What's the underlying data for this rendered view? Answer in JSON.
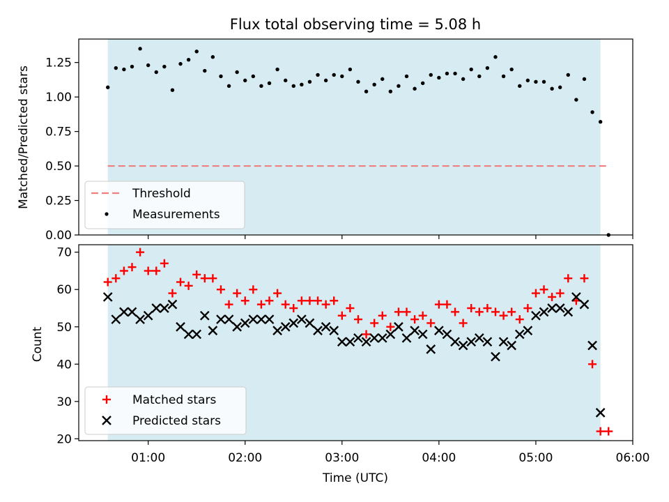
{
  "title": "Flux total observing time = 5.08 h",
  "chart_data": [
    {
      "type": "scatter",
      "panel": "top",
      "ylabel": "Matched/Predicted stars",
      "ylim": [
        0,
        1.42
      ],
      "yticks": [
        0.0,
        0.25,
        0.5,
        0.75,
        1.0,
        1.25
      ],
      "ytick_labels": [
        "0.00",
        "0.25",
        "0.50",
        "0.75",
        "1.00",
        "1.25"
      ],
      "xlim": [
        "00:17",
        "06:00"
      ],
      "shaded_span": [
        "00:35",
        "05:40"
      ],
      "shade_color": "#add8e6",
      "legend_position": "lower-left",
      "threshold": {
        "name": "Threshold",
        "value": 0.5,
        "x_range": [
          "00:35",
          "05:45"
        ],
        "color": "#f08080",
        "style": "dashed"
      },
      "series": [
        {
          "name": "Measurements",
          "color": "#000000",
          "marker": "dot",
          "x": [
            "00:35",
            "00:40",
            "00:45",
            "00:50",
            "00:55",
            "01:00",
            "01:05",
            "01:10",
            "01:15",
            "01:20",
            "01:25",
            "01:30",
            "01:35",
            "01:40",
            "01:45",
            "01:50",
            "01:55",
            "02:00",
            "02:05",
            "02:10",
            "02:15",
            "02:20",
            "02:25",
            "02:30",
            "02:35",
            "02:40",
            "02:45",
            "02:50",
            "02:55",
            "03:00",
            "03:05",
            "03:10",
            "03:15",
            "03:20",
            "03:25",
            "03:30",
            "03:35",
            "03:40",
            "03:45",
            "03:50",
            "03:55",
            "04:00",
            "04:05",
            "04:10",
            "04:15",
            "04:20",
            "04:25",
            "04:30",
            "04:35",
            "04:40",
            "04:45",
            "04:50",
            "04:55",
            "05:00",
            "05:05",
            "05:10",
            "05:15",
            "05:20",
            "05:25",
            "05:30",
            "05:35",
            "05:40",
            "05:45"
          ],
          "y": [
            1.07,
            1.21,
            1.2,
            1.22,
            1.35,
            1.23,
            1.18,
            1.22,
            1.05,
            1.24,
            1.27,
            1.33,
            1.19,
            1.29,
            1.15,
            1.08,
            1.18,
            1.12,
            1.15,
            1.08,
            1.1,
            1.2,
            1.12,
            1.08,
            1.09,
            1.11,
            1.16,
            1.12,
            1.16,
            1.15,
            1.2,
            1.11,
            1.04,
            1.09,
            1.13,
            1.04,
            1.08,
            1.15,
            1.06,
            1.1,
            1.16,
            1.14,
            1.17,
            1.17,
            1.13,
            1.2,
            1.15,
            1.21,
            1.29,
            1.15,
            1.2,
            1.08,
            1.12,
            1.11,
            1.11,
            1.06,
            1.07,
            1.16,
            0.98,
            1.13,
            0.89,
            0.82,
            0.0
          ]
        }
      ]
    },
    {
      "type": "scatter",
      "panel": "bottom",
      "xlabel": "Time (UTC)",
      "ylabel": "Count",
      "ylim": [
        19.5,
        72
      ],
      "yticks": [
        20,
        30,
        40,
        50,
        60,
        70
      ],
      "ytick_labels": [
        "20",
        "30",
        "40",
        "50",
        "60",
        "70"
      ],
      "xlim": [
        "00:17",
        "06:00"
      ],
      "xticks": [
        "01:00",
        "02:00",
        "03:00",
        "04:00",
        "05:00",
        "06:00"
      ],
      "xtick_labels": [
        "01:00",
        "02:00",
        "03:00",
        "04:00",
        "05:00",
        "06:00"
      ],
      "shaded_span": [
        "00:35",
        "05:40"
      ],
      "shade_color": "#add8e6",
      "legend_position": "lower-left",
      "x": [
        "00:35",
        "00:40",
        "00:45",
        "00:50",
        "00:55",
        "01:00",
        "01:05",
        "01:10",
        "01:15",
        "01:20",
        "01:25",
        "01:30",
        "01:35",
        "01:40",
        "01:45",
        "01:50",
        "01:55",
        "02:00",
        "02:05",
        "02:10",
        "02:15",
        "02:20",
        "02:25",
        "02:30",
        "02:35",
        "02:40",
        "02:45",
        "02:50",
        "02:55",
        "03:00",
        "03:05",
        "03:10",
        "03:15",
        "03:20",
        "03:25",
        "03:30",
        "03:35",
        "03:40",
        "03:45",
        "03:50",
        "03:55",
        "04:00",
        "04:05",
        "04:10",
        "04:15",
        "04:20",
        "04:25",
        "04:30",
        "04:35",
        "04:40",
        "04:45",
        "04:50",
        "04:55",
        "05:00",
        "05:05",
        "05:10",
        "05:15",
        "05:20",
        "05:25",
        "05:30",
        "05:35",
        "05:40",
        "05:45"
      ],
      "series": [
        {
          "name": "Matched stars",
          "color": "#ff0000",
          "marker": "plus",
          "values": [
            62,
            63,
            65,
            66,
            70,
            65,
            65,
            67,
            59,
            62,
            61,
            64,
            63,
            63,
            60,
            56,
            59,
            57,
            60,
            56,
            57,
            59,
            56,
            55,
            57,
            57,
            57,
            56,
            57,
            53,
            55,
            52,
            48,
            51,
            53,
            50,
            54,
            54,
            52,
            53,
            51,
            56,
            56,
            54,
            51,
            55,
            54,
            55,
            54,
            53,
            54,
            52,
            55,
            59,
            60,
            58,
            59,
            63,
            57,
            63,
            40,
            22,
            22
          ]
        },
        {
          "name": "Predicted stars",
          "color": "#000000",
          "marker": "x",
          "values": [
            58,
            52,
            54,
            54,
            52,
            53,
            55,
            55,
            56,
            50,
            48,
            48,
            53,
            49,
            52,
            52,
            50,
            51,
            52,
            52,
            52,
            49,
            50,
            51,
            52,
            51,
            49,
            50,
            49,
            46,
            46,
            47,
            46,
            47,
            47,
            48,
            50,
            47,
            49,
            48,
            44,
            49,
            48,
            46,
            45,
            46,
            47,
            46,
            42,
            46,
            45,
            48,
            49,
            53,
            54,
            55,
            55,
            54,
            58,
            56,
            45,
            27,
            null
          ]
        }
      ]
    }
  ]
}
